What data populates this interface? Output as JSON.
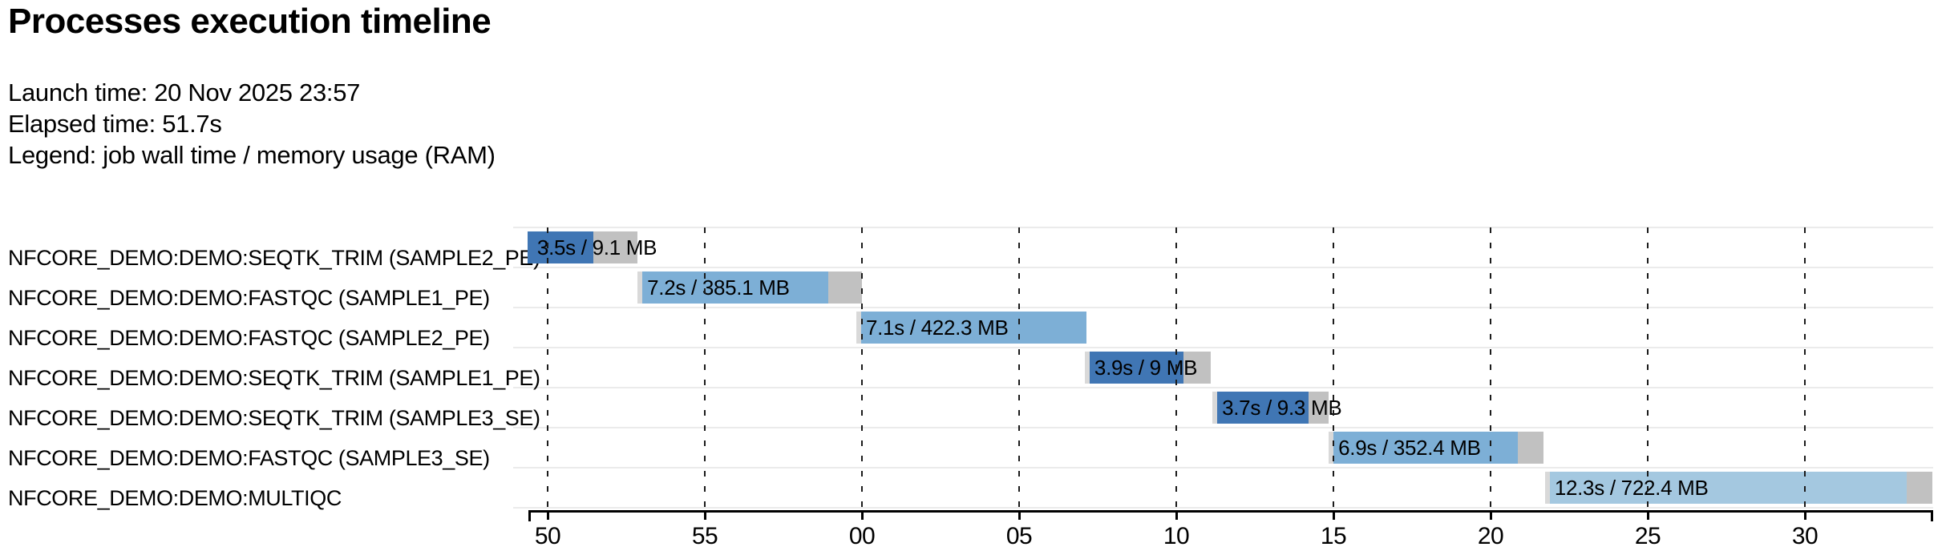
{
  "page": {
    "title": "Processes execution timeline",
    "launch_line": "Launch time: 20 Nov 2025 23:57",
    "elapsed_line": "Elapsed time: 51.7s",
    "legend_line": "Legend: job wall time / memory usage (RAM)"
  },
  "colors": {
    "seqtk_trim": "#4076b4",
    "fastqc": "#7dafd6",
    "multiqc": "#a4c8e0",
    "overhead_tail": "#c1c1c1",
    "submit_sliver": "#d9d9d9",
    "axis": "#000000",
    "row_separator": "#ebebeb"
  },
  "chart_data": {
    "type": "bar",
    "subtype": "gantt-process-timeline",
    "title": "Processes execution timeline",
    "launch_time": "20 Nov 2025 23:57",
    "elapsed_time_s": 51.7,
    "legend": "job wall time / memory usage (RAM)",
    "grid": true,
    "x_axis": {
      "unit": "clock seconds (wrapping past minute 23:57 into 23:58)",
      "domain_s": [
        49.44,
        94.06
      ],
      "ticks": [
        {
          "t": 50,
          "label": "50"
        },
        {
          "t": 55,
          "label": "55"
        },
        {
          "t": 60,
          "label": "00"
        },
        {
          "t": 65,
          "label": "05"
        },
        {
          "t": 70,
          "label": "10"
        },
        {
          "t": 75,
          "label": "15"
        },
        {
          "t": 80,
          "label": "20"
        },
        {
          "t": 85,
          "label": "25"
        },
        {
          "t": 90,
          "label": "30"
        }
      ]
    },
    "tasks": [
      {
        "process": "NFCORE_DEMO:DEMO:SEQTK_TRIM (SAMPLE2_PE)",
        "bar_label": "3.5s / 9.1 MB",
        "wall_time_s": 3.5,
        "memory": "9.1 MB",
        "color_key": "seqtk_trim",
        "start_s": 49.36,
        "run_end_s": 51.45,
        "end_s": 52.86,
        "sliver": false
      },
      {
        "process": "NFCORE_DEMO:DEMO:FASTQC (SAMPLE1_PE)",
        "bar_label": "7.2s / 385.1 MB",
        "wall_time_s": 7.2,
        "memory": "385.1 MB",
        "color_key": "fastqc",
        "start_s": 52.86,
        "run_end_s": 58.93,
        "end_s": 60.0,
        "sliver": true
      },
      {
        "process": "NFCORE_DEMO:DEMO:FASTQC (SAMPLE2_PE)",
        "bar_label": "7.1s / 422.3 MB",
        "wall_time_s": 7.1,
        "memory": "422.3 MB",
        "color_key": "fastqc",
        "start_s": 59.82,
        "run_end_s": 67.14,
        "end_s": 67.14,
        "sliver": true
      },
      {
        "process": "NFCORE_DEMO:DEMO:SEQTK_TRIM (SAMPLE1_PE)",
        "bar_label": "3.9s / 9 MB",
        "wall_time_s": 3.9,
        "memory": "9 MB",
        "color_key": "seqtk_trim",
        "start_s": 67.09,
        "run_end_s": 70.23,
        "end_s": 71.1,
        "sliver": true
      },
      {
        "process": "NFCORE_DEMO:DEMO:SEQTK_TRIM (SAMPLE3_SE)",
        "bar_label": "3.7s / 9.3 MB",
        "wall_time_s": 3.7,
        "memory": "9.3 MB",
        "color_key": "seqtk_trim",
        "start_s": 71.15,
        "run_end_s": 74.21,
        "end_s": 74.85,
        "sliver": true
      },
      {
        "process": "NFCORE_DEMO:DEMO:FASTQC (SAMPLE3_SE)",
        "bar_label": "6.9s / 352.4 MB",
        "wall_time_s": 6.9,
        "memory": "352.4 MB",
        "color_key": "fastqc",
        "start_s": 74.85,
        "run_end_s": 80.87,
        "end_s": 81.68,
        "sliver": true
      },
      {
        "process": "NFCORE_DEMO:DEMO:MULTIQC",
        "bar_label": "12.3s / 722.4 MB",
        "wall_time_s": 12.3,
        "memory": "722.4 MB",
        "color_key": "multiqc",
        "start_s": 81.73,
        "run_end_s": 93.24,
        "end_s": 94.06,
        "sliver": true
      }
    ]
  }
}
